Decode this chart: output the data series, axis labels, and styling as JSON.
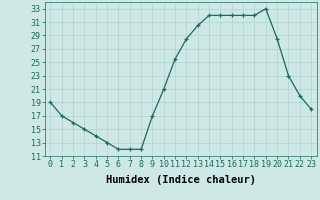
{
  "x": [
    0,
    1,
    2,
    3,
    4,
    5,
    6,
    7,
    8,
    9,
    10,
    11,
    12,
    13,
    14,
    15,
    16,
    17,
    18,
    19,
    20,
    21,
    22,
    23
  ],
  "y": [
    19,
    17,
    16,
    15,
    14,
    13,
    12,
    12,
    12,
    17,
    21,
    25.5,
    28.5,
    30.5,
    32,
    32,
    32,
    32,
    32,
    33,
    28.5,
    23,
    20,
    18
  ],
  "xlabel": "Humidex (Indice chaleur)",
  "ylim": [
    11,
    34
  ],
  "yticks": [
    11,
    13,
    15,
    17,
    19,
    21,
    23,
    25,
    27,
    29,
    31,
    33
  ],
  "xticks": [
    0,
    1,
    2,
    3,
    4,
    5,
    6,
    7,
    8,
    9,
    10,
    11,
    12,
    13,
    14,
    15,
    16,
    17,
    18,
    19,
    20,
    21,
    22,
    23
  ],
  "line_color": "#1a6b5a",
  "bg_color": "#cde8e5",
  "grid_color": "#b0d4d0",
  "tick_label_fontsize": 6.0,
  "xlabel_fontsize": 7.5
}
